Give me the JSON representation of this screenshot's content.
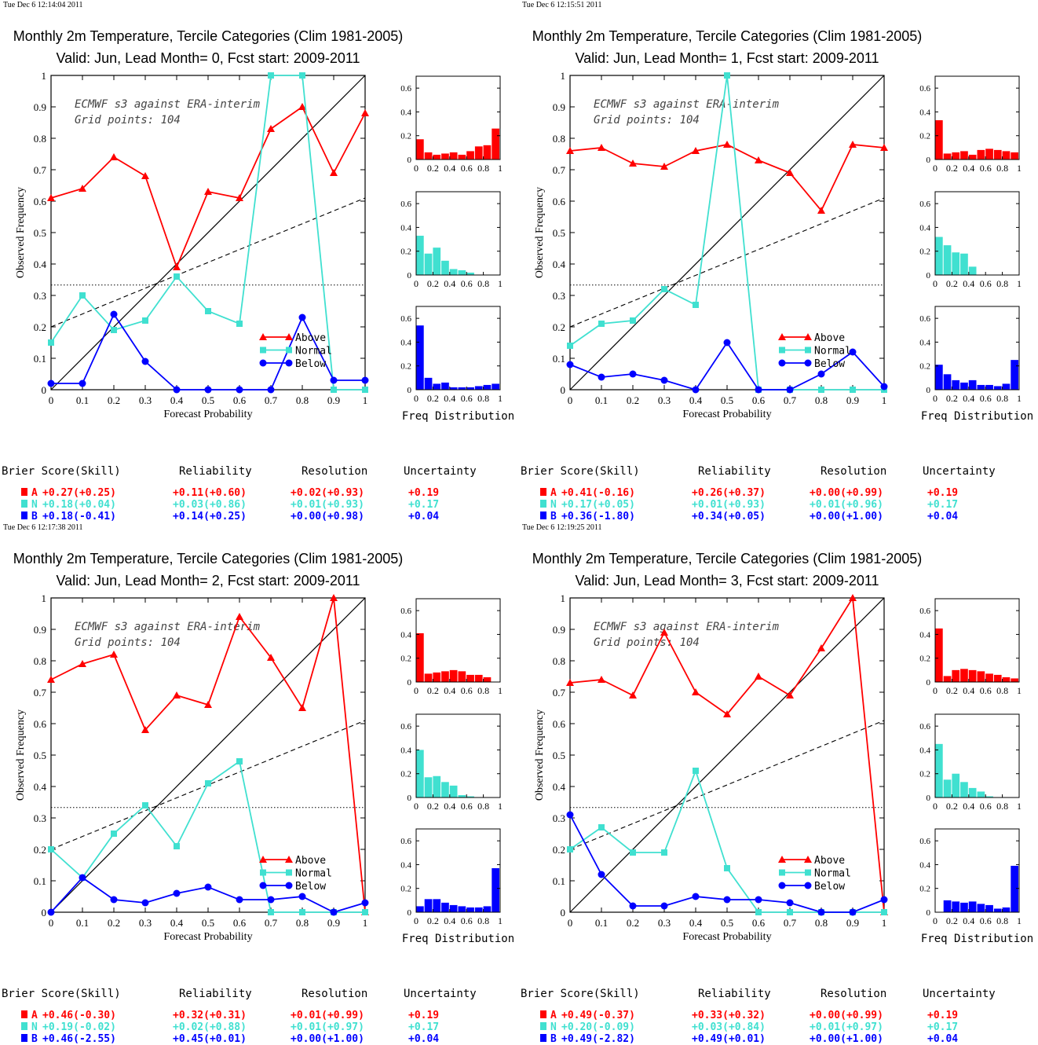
{
  "colors": {
    "above": "#ff0000",
    "normal": "#40e0d0",
    "below": "#0000ff",
    "axis": "#000000"
  },
  "labels": {
    "title_line1": "Monthly 2m Temperature, Tercile Categories (Clim 1981-2005)",
    "annotation_line1": "ECMWF s3 against ERA-interim",
    "annotation_line2": "Grid points:  104",
    "xlabel": "Forecast Probability",
    "ylabel": "Observed Frequency",
    "freq_label": "Freq Distribution",
    "legend": [
      "Above",
      "Normal",
      "Below"
    ],
    "table_headers": [
      "Brier Score(Skill)",
      "Reliability",
      "Resolution",
      "Uncertainty"
    ],
    "table_letters": [
      "A",
      "N",
      "B"
    ]
  },
  "chart_data": [
    {
      "type": "line",
      "timestamp": "Tue Dec  6 12:14:04 2011",
      "title_line2": "Valid: Jun, Lead Month= 0, Fcst start: 2009-2011",
      "x": [
        0,
        0.1,
        0.2,
        0.3,
        0.4,
        0.5,
        0.6,
        0.7,
        0.8,
        0.9,
        1
      ],
      "xlim": [
        0,
        1
      ],
      "ylim": [
        0,
        1
      ],
      "series": [
        {
          "name": "Above",
          "values": [
            0.61,
            0.64,
            0.74,
            0.68,
            0.39,
            0.63,
            0.61,
            0.83,
            0.9,
            0.69,
            0.88
          ]
        },
        {
          "name": "Normal",
          "values": [
            0.15,
            0.3,
            0.19,
            0.22,
            0.36,
            0.25,
            0.21,
            1.0,
            1.0,
            0.0,
            0.0
          ]
        },
        {
          "name": "Below",
          "values": [
            0.02,
            0.02,
            0.24,
            0.09,
            0.0,
            0.0,
            0.0,
            0.0,
            0.23,
            0.03,
            0.03
          ]
        }
      ],
      "climatology_line": [
        0.2,
        0.61
      ],
      "climatology_frequency": 0.333,
      "histograms": {
        "ylim": [
          0,
          0.7
        ],
        "above": [
          0.17,
          0.06,
          0.04,
          0.05,
          0.06,
          0.04,
          0.07,
          0.11,
          0.12,
          0.26
        ],
        "normal": [
          0.33,
          0.18,
          0.23,
          0.12,
          0.05,
          0.04,
          0.02,
          0.0,
          0.0,
          0.0
        ],
        "below": [
          0.54,
          0.1,
          0.05,
          0.06,
          0.02,
          0.02,
          0.02,
          0.03,
          0.04,
          0.05
        ]
      },
      "scores": {
        "A": [
          "+0.27(+0.25)",
          "+0.11(+0.60)",
          "+0.02(+0.93)",
          "+0.19"
        ],
        "N": [
          "+0.18(+0.04)",
          "+0.03(+0.86)",
          "+0.01(+0.93)",
          "+0.17"
        ],
        "B": [
          "+0.18(-0.41)",
          "+0.14(+0.25)",
          "+0.00(+0.98)",
          "+0.04"
        ]
      }
    },
    {
      "type": "line",
      "timestamp": "Tue Dec  6 12:15:51 2011",
      "title_line2": "Valid: Jun, Lead Month= 1, Fcst start: 2009-2011",
      "x": [
        0,
        0.1,
        0.2,
        0.3,
        0.4,
        0.5,
        0.6,
        0.7,
        0.8,
        0.9,
        1
      ],
      "xlim": [
        0,
        1
      ],
      "ylim": [
        0,
        1
      ],
      "series": [
        {
          "name": "Above",
          "values": [
            0.76,
            0.77,
            0.72,
            0.71,
            0.76,
            0.78,
            0.73,
            0.69,
            0.57,
            0.78,
            0.77
          ]
        },
        {
          "name": "Normal",
          "values": [
            0.14,
            0.21,
            0.22,
            0.32,
            0.27,
            1.0,
            0.0,
            0.0,
            0.0,
            0.0,
            0.0
          ]
        },
        {
          "name": "Below",
          "values": [
            0.08,
            0.04,
            0.05,
            0.03,
            0.0,
            0.15,
            0.0,
            0.0,
            0.05,
            0.12,
            0.01
          ]
        }
      ],
      "climatology_line": [
        0.2,
        0.61
      ],
      "climatology_frequency": 0.333,
      "histograms": {
        "ylim": [
          0,
          0.7
        ],
        "above": [
          0.33,
          0.05,
          0.06,
          0.07,
          0.04,
          0.08,
          0.09,
          0.08,
          0.07,
          0.06
        ],
        "normal": [
          0.32,
          0.25,
          0.19,
          0.18,
          0.07,
          0.0,
          0.0,
          0.0,
          0.0,
          0.0
        ],
        "below": [
          0.21,
          0.13,
          0.08,
          0.06,
          0.08,
          0.04,
          0.04,
          0.03,
          0.05,
          0.25
        ]
      },
      "scores": {
        "A": [
          "+0.41(-0.16)",
          "+0.26(+0.37)",
          "+0.00(+0.99)",
          "+0.19"
        ],
        "N": [
          "+0.17(+0.05)",
          "+0.01(+0.93)",
          "+0.01(+0.96)",
          "+0.17"
        ],
        "B": [
          "+0.36(-1.80)",
          "+0.34(+0.05)",
          "+0.00(+1.00)",
          "+0.04"
        ]
      }
    },
    {
      "type": "line",
      "timestamp": "Tue Dec  6 12:17:38 2011",
      "title_line2": "Valid: Jun, Lead Month= 2, Fcst start: 2009-2011",
      "x": [
        0,
        0.1,
        0.2,
        0.3,
        0.4,
        0.5,
        0.6,
        0.7,
        0.8,
        0.9,
        1
      ],
      "xlim": [
        0,
        1
      ],
      "ylim": [
        0,
        1
      ],
      "series": [
        {
          "name": "Above",
          "values": [
            0.74,
            0.79,
            0.82,
            0.58,
            0.69,
            0.66,
            0.94,
            0.81,
            0.65,
            1.0,
            0.0
          ]
        },
        {
          "name": "Normal",
          "values": [
            0.2,
            0.11,
            0.25,
            0.34,
            0.21,
            0.41,
            0.48,
            0.0,
            0.0,
            0.0,
            0.0
          ]
        },
        {
          "name": "Below",
          "values": [
            0.0,
            0.11,
            0.04,
            0.03,
            0.06,
            0.08,
            0.04,
            0.04,
            0.05,
            0.0,
            0.03
          ]
        }
      ],
      "climatology_line": [
        0.2,
        0.61
      ],
      "climatology_frequency": 0.333,
      "histograms": {
        "ylim": [
          0,
          0.7
        ],
        "above": [
          0.41,
          0.07,
          0.08,
          0.09,
          0.1,
          0.09,
          0.06,
          0.06,
          0.04,
          0.0
        ],
        "normal": [
          0.4,
          0.17,
          0.18,
          0.13,
          0.1,
          0.02,
          0.01,
          0.0,
          0.0,
          0.0
        ],
        "below": [
          0.05,
          0.11,
          0.11,
          0.08,
          0.06,
          0.05,
          0.04,
          0.04,
          0.05,
          0.37
        ]
      },
      "scores": {
        "A": [
          "+0.46(-0.30)",
          "+0.32(+0.31)",
          "+0.01(+0.99)",
          "+0.19"
        ],
        "N": [
          "+0.19(-0.02)",
          "+0.02(+0.88)",
          "+0.01(+0.97)",
          "+0.17"
        ],
        "B": [
          "+0.46(-2.55)",
          "+0.45(+0.01)",
          "+0.00(+1.00)",
          "+0.04"
        ]
      }
    },
    {
      "type": "line",
      "timestamp": "Tue Dec  6 12:19:25 2011",
      "title_line2": "Valid: Jun, Lead Month= 3, Fcst start: 2009-2011",
      "x": [
        0,
        0.1,
        0.2,
        0.3,
        0.4,
        0.5,
        0.6,
        0.7,
        0.8,
        0.9,
        1
      ],
      "xlim": [
        0,
        1
      ],
      "ylim": [
        0,
        1
      ],
      "series": [
        {
          "name": "Above",
          "values": [
            0.73,
            0.74,
            0.69,
            0.89,
            0.7,
            0.63,
            0.75,
            0.69,
            0.84,
            1.0,
            0.0
          ]
        },
        {
          "name": "Normal",
          "values": [
            0.2,
            0.27,
            0.19,
            0.19,
            0.45,
            0.14,
            0.0,
            0.0,
            0.0,
            0.0,
            0.0
          ]
        },
        {
          "name": "Below",
          "values": [
            0.31,
            0.12,
            0.02,
            0.02,
            0.05,
            0.04,
            0.04,
            0.03,
            0.0,
            0.0,
            0.04
          ]
        }
      ],
      "climatology_line": [
        0.2,
        0.61
      ],
      "climatology_frequency": 0.333,
      "histograms": {
        "ylim": [
          0,
          0.7
        ],
        "above": [
          0.45,
          0.05,
          0.1,
          0.11,
          0.1,
          0.09,
          0.07,
          0.06,
          0.04,
          0.03
        ],
        "normal": [
          0.45,
          0.15,
          0.2,
          0.13,
          0.08,
          0.05,
          0.01,
          0.0,
          0.0,
          0.0
        ],
        "below": [
          0.0,
          0.1,
          0.09,
          0.08,
          0.09,
          0.07,
          0.06,
          0.03,
          0.04,
          0.39
        ]
      },
      "scores": {
        "A": [
          "+0.49(-0.37)",
          "+0.33(+0.32)",
          "+0.00(+0.99)",
          "+0.19"
        ],
        "N": [
          "+0.20(-0.09)",
          "+0.03(+0.84)",
          "+0.01(+0.97)",
          "+0.17"
        ],
        "B": [
          "+0.49(-2.82)",
          "+0.49(+0.01)",
          "+0.00(+1.00)",
          "+0.04"
        ]
      }
    }
  ]
}
